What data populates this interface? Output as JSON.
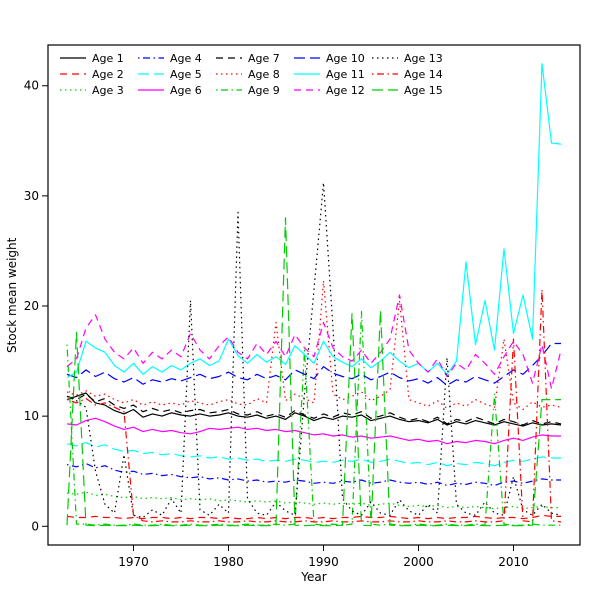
{
  "chart_data": {
    "type": "line",
    "title": "",
    "xlabel": "Year",
    "ylabel": "Stock mean weight",
    "x_ticks": [
      1970,
      1980,
      1990,
      2000,
      2010
    ],
    "y_ticks": [
      0,
      10,
      20,
      30,
      40
    ],
    "xlim": [
      1961,
      2017
    ],
    "ylim": [
      -1.7,
      43.7
    ],
    "grid": false,
    "legend_position": "top-left",
    "legend_columns": 5,
    "years": [
      1963,
      1964,
      1965,
      1966,
      1967,
      1968,
      1969,
      1970,
      1971,
      1972,
      1973,
      1974,
      1975,
      1976,
      1977,
      1978,
      1979,
      1980,
      1981,
      1982,
      1983,
      1984,
      1985,
      1986,
      1987,
      1988,
      1989,
      1990,
      1991,
      1992,
      1993,
      1994,
      1995,
      1996,
      1997,
      1998,
      1999,
      2000,
      2001,
      2002,
      2003,
      2004,
      2005,
      2006,
      2007,
      2008,
      2009,
      2010,
      2011,
      2012,
      2013,
      2014,
      2015
    ],
    "series": [
      {
        "name": "Age 1",
        "color": "#000000",
        "linetype": "solid",
        "values": [
          11.5,
          11.8,
          12.1,
          11.2,
          11.0,
          10.5,
          10.2,
          10.6,
          9.9,
          10.2,
          10.0,
          10.3,
          10.1,
          10.0,
          10.2,
          10.0,
          10.1,
          10.3,
          10.0,
          9.9,
          10.1,
          9.8,
          10.0,
          9.7,
          10.3,
          10.0,
          9.6,
          9.9,
          9.7,
          10.0,
          9.9,
          10.1,
          9.6,
          9.8,
          10.0,
          9.7,
          9.5,
          9.6,
          9.4,
          9.7,
          9.2,
          9.5,
          9.3,
          9.6,
          9.4,
          9.2,
          9.5,
          9.3,
          9.1,
          9.4,
          9.2,
          9.3,
          9.2
        ]
      },
      {
        "name": "Age 2",
        "color": "#FF0000",
        "linetype": "dashed",
        "values": [
          0.9,
          0.8,
          0.8,
          0.9,
          0.8,
          0.8,
          0.7,
          0.8,
          0.7,
          0.8,
          0.8,
          0.7,
          0.8,
          0.7,
          0.8,
          0.8,
          0.7,
          0.8,
          0.7,
          0.7,
          0.8,
          0.7,
          0.8,
          0.7,
          0.8,
          0.8,
          0.7,
          0.8,
          0.7,
          0.8,
          0.8,
          0.9,
          0.8,
          0.8,
          0.9,
          0.8,
          0.7,
          0.8,
          0.7,
          0.8,
          0.7,
          0.8,
          0.8,
          0.9,
          0.8,
          0.7,
          0.8,
          0.8,
          0.7,
          0.8,
          1.0,
          0.9,
          0.9
        ]
      },
      {
        "name": "Age 3",
        "color": "#00CD00",
        "linetype": "dotted",
        "values": [
          3.0,
          2.9,
          3.1,
          2.8,
          2.9,
          2.7,
          2.6,
          2.7,
          2.5,
          2.6,
          2.5,
          2.6,
          2.4,
          2.5,
          2.4,
          2.5,
          2.3,
          2.4,
          2.3,
          2.2,
          2.3,
          2.2,
          2.3,
          2.1,
          2.2,
          2.1,
          2.0,
          2.1,
          2.0,
          2.1,
          2.0,
          2.1,
          1.9,
          2.0,
          2.1,
          1.9,
          1.8,
          1.9,
          1.8,
          1.9,
          1.7,
          1.8,
          1.7,
          1.8,
          1.7,
          1.6,
          1.7,
          1.8,
          1.6,
          1.7,
          1.8,
          1.7,
          1.7
        ]
      },
      {
        "name": "Age 4",
        "color": "#0000FF",
        "linetype": "dotdash",
        "values": [
          5.6,
          5.4,
          5.7,
          5.3,
          5.5,
          5.1,
          4.9,
          5.0,
          4.7,
          4.8,
          4.6,
          4.7,
          4.5,
          4.4,
          4.5,
          4.3,
          4.4,
          4.2,
          4.3,
          4.1,
          4.2,
          4.0,
          4.1,
          4.0,
          4.2,
          4.1,
          3.9,
          4.0,
          3.9,
          4.1,
          4.0,
          4.2,
          3.9,
          4.0,
          4.2,
          4.0,
          3.9,
          4.0,
          3.8,
          4.0,
          3.7,
          3.9,
          3.8,
          4.0,
          3.9,
          3.7,
          4.0,
          4.1,
          3.9,
          4.1,
          4.3,
          4.2,
          4.2
        ]
      },
      {
        "name": "Age 5",
        "color": "#00FFFF",
        "linetype": "longdash",
        "values": [
          7.5,
          7.3,
          7.6,
          7.2,
          7.4,
          7.0,
          6.8,
          6.9,
          6.6,
          6.7,
          6.5,
          6.6,
          6.4,
          6.3,
          6.4,
          6.2,
          6.3,
          6.1,
          6.2,
          6.0,
          6.1,
          5.9,
          6.0,
          5.9,
          6.1,
          6.0,
          5.8,
          5.9,
          5.8,
          6.0,
          5.9,
          6.1,
          5.8,
          5.9,
          6.1,
          5.9,
          5.7,
          5.8,
          5.6,
          5.8,
          5.5,
          5.7,
          5.6,
          5.8,
          5.7,
          5.5,
          5.8,
          6.0,
          5.9,
          6.1,
          6.3,
          6.2,
          6.2
        ]
      },
      {
        "name": "Age 6",
        "color": "#FF00FF",
        "linetype": "solid",
        "values": [
          9.3,
          9.2,
          9.6,
          9.8,
          9.5,
          9.1,
          8.8,
          9.0,
          8.6,
          8.8,
          8.6,
          8.7,
          8.5,
          8.4,
          8.6,
          8.9,
          8.8,
          8.9,
          9.0,
          8.8,
          8.9,
          8.7,
          8.8,
          8.6,
          8.7,
          8.5,
          8.3,
          8.4,
          8.2,
          8.3,
          8.1,
          8.2,
          8.0,
          8.1,
          8.2,
          8.0,
          7.8,
          7.9,
          7.7,
          7.8,
          7.5,
          7.7,
          7.6,
          7.8,
          7.7,
          7.5,
          7.8,
          8.0,
          7.8,
          8.1,
          8.3,
          8.2,
          8.2
        ]
      },
      {
        "name": "Age 7",
        "color": "#000000",
        "linetype": "dashed",
        "values": [
          11.8,
          11.5,
          12.0,
          11.3,
          11.6,
          11.0,
          10.7,
          11.0,
          10.4,
          10.7,
          10.4,
          10.6,
          10.3,
          10.5,
          10.6,
          10.3,
          10.4,
          10.6,
          10.2,
          10.1,
          10.4,
          10.0,
          10.2,
          9.9,
          10.5,
          10.1,
          9.8,
          10.2,
          9.9,
          10.3,
          10.1,
          10.4,
          9.8,
          10.0,
          10.3,
          9.9,
          9.6,
          9.8,
          9.5,
          9.9,
          9.3,
          9.7,
          9.5,
          9.9,
          9.6,
          9.3,
          9.7,
          9.5,
          9.2,
          9.6,
          9.3,
          9.5,
          9.3
        ]
      },
      {
        "name": "Age 8",
        "color": "#FF0000",
        "linetype": "dotted",
        "values": [
          12.2,
          11.9,
          12.3,
          11.8,
          12.0,
          11.5,
          11.2,
          11.5,
          11.0,
          11.3,
          11.0,
          11.2,
          11.0,
          11.4,
          11.2,
          11.0,
          11.3,
          11.5,
          11.1,
          11.0,
          11.6,
          11.2,
          18.5,
          11.4,
          12.0,
          11.6,
          11.2,
          22.3,
          12.0,
          11.5,
          11.8,
          12.2,
          11.4,
          11.8,
          12.4,
          20.5,
          11.5,
          11.2,
          10.9,
          11.4,
          10.7,
          11.2,
          10.9,
          11.5,
          11.1,
          10.8,
          17.0,
          11.2,
          10.6,
          11.3,
          10.8,
          11.0,
          10.8
        ]
      },
      {
        "name": "Age 9",
        "color": "#00CD00",
        "linetype": "dotdash",
        "values": [
          16.5,
          0.2,
          0.2,
          0.1,
          0.2,
          0.1,
          0.1,
          0.2,
          0.1,
          0.1,
          0.2,
          0.1,
          0.1,
          0.2,
          0.1,
          0.1,
          0.2,
          0.1,
          0.1,
          0.2,
          0.1,
          0.1,
          0.2,
          0.1,
          0.2,
          16.0,
          0.2,
          0.1,
          0.2,
          0.1,
          0.2,
          19.5,
          0.2,
          0.1,
          0.2,
          0.1,
          0.1,
          0.2,
          0.1,
          0.1,
          0.2,
          0.1,
          0.1,
          0.2,
          0.1,
          12.0,
          0.2,
          0.1,
          0.1,
          0.2,
          0.1,
          0.1,
          0.1
        ]
      },
      {
        "name": "Age 10",
        "color": "#0000FF",
        "linetype": "longdash",
        "values": [
          13.8,
          13.5,
          14.2,
          13.6,
          14.0,
          13.4,
          13.1,
          13.5,
          12.9,
          13.3,
          13.1,
          13.4,
          13.2,
          13.5,
          13.8,
          13.4,
          13.6,
          14.0,
          13.5,
          13.3,
          13.8,
          13.4,
          13.7,
          13.3,
          14.2,
          13.8,
          13.4,
          14.5,
          13.9,
          13.6,
          13.4,
          13.8,
          13.3,
          13.6,
          14.0,
          13.5,
          13.2,
          13.4,
          13.0,
          13.5,
          12.8,
          13.3,
          13.1,
          13.6,
          13.3,
          13.0,
          13.6,
          14.2,
          13.8,
          14.6,
          15.5,
          16.6,
          16.6
        ]
      },
      {
        "name": "Age 11",
        "color": "#00FFFF",
        "linetype": "solid",
        "values": [
          13.5,
          14.0,
          16.8,
          16.2,
          15.8,
          14.6,
          14.0,
          14.8,
          13.8,
          14.5,
          14.0,
          14.6,
          14.2,
          14.8,
          15.2,
          14.6,
          15.0,
          17.0,
          15.5,
          14.8,
          15.6,
          14.9,
          15.4,
          14.7,
          16.4,
          15.6,
          14.8,
          16.8,
          15.4,
          14.9,
          14.5,
          15.2,
          14.4,
          15.0,
          15.8,
          15.0,
          14.4,
          14.8,
          14.0,
          14.8,
          13.8,
          15.0,
          24.0,
          16.5,
          20.5,
          16.0,
          25.2,
          17.5,
          21.0,
          17.0,
          42.0,
          34.8,
          34.7
        ]
      },
      {
        "name": "Age 12",
        "color": "#FF00FF",
        "linetype": "dashed",
        "values": [
          14.5,
          15.2,
          18.0,
          19.2,
          17.0,
          15.8,
          15.2,
          16.2,
          14.8,
          15.8,
          15.2,
          16.0,
          15.4,
          17.5,
          16.0,
          15.2,
          16.4,
          17.2,
          15.8,
          15.2,
          16.6,
          15.6,
          16.8,
          15.4,
          17.4,
          16.2,
          15.4,
          18.5,
          16.2,
          15.4,
          15.0,
          16.0,
          14.8,
          15.8,
          17.0,
          21.0,
          16.0,
          14.8,
          14.0,
          15.2,
          13.6,
          14.8,
          14.2,
          15.6,
          14.8,
          13.8,
          15.4,
          16.8,
          15.6,
          13.0,
          16.5,
          12.5,
          16.0
        ]
      },
      {
        "name": "Age 13",
        "color": "#000000",
        "linetype": "dotted",
        "values": [
          11.8,
          11.4,
          10.8,
          5.0,
          2.0,
          1.2,
          6.5,
          1.0,
          0.8,
          1.5,
          1.0,
          2.5,
          1.2,
          20.5,
          1.5,
          1.0,
          2.0,
          1.2,
          28.5,
          2.5,
          1.2,
          1.0,
          2.2,
          1.4,
          1.0,
          12.0,
          21.5,
          31.2,
          18.0,
          2.5,
          1.4,
          1.0,
          2.2,
          1.2,
          1.0,
          2.4,
          1.4,
          1.0,
          2.0,
          1.2,
          15.3,
          2.0,
          1.2,
          1.0,
          2.2,
          1.2,
          1.0,
          4.5,
          1.5,
          1.0,
          2.0,
          1.2,
          1.0
        ]
      },
      {
        "name": "Age 14",
        "color": "#FF0000",
        "linetype": "dotdash",
        "values": [
          11.5,
          11.2,
          11.6,
          11.0,
          11.2,
          10.8,
          10.4,
          1.0,
          0.5,
          0.4,
          0.5,
          0.4,
          0.4,
          0.5,
          0.4,
          0.4,
          0.5,
          0.4,
          0.4,
          0.5,
          0.4,
          0.4,
          0.5,
          0.4,
          0.4,
          0.5,
          0.4,
          0.4,
          0.5,
          0.4,
          0.4,
          0.5,
          0.4,
          0.4,
          0.5,
          0.4,
          0.4,
          0.5,
          0.4,
          0.4,
          0.5,
          0.4,
          0.4,
          0.5,
          0.4,
          0.4,
          0.5,
          17.0,
          0.5,
          0.4,
          21.5,
          0.5,
          0.4
        ]
      },
      {
        "name": "Age 15",
        "color": "#00CD00",
        "linetype": "longdash",
        "values": [
          0.1,
          17.6,
          0.1,
          0.05,
          0.1,
          0.05,
          0.05,
          0.1,
          0.05,
          0.05,
          0.1,
          0.05,
          0.05,
          0.1,
          0.05,
          0.05,
          0.1,
          0.05,
          0.05,
          0.1,
          0.05,
          0.05,
          0.1,
          28.0,
          0.1,
          0.05,
          0.1,
          0.05,
          0.05,
          0.1,
          19.3,
          0.1,
          0.05,
          19.6,
          0.1,
          0.05,
          0.05,
          0.1,
          0.05,
          0.05,
          0.1,
          0.05,
          0.05,
          0.1,
          0.05,
          0.05,
          0.1,
          0.05,
          0.05,
          0.1,
          11.5,
          11.5,
          11.5
        ]
      }
    ]
  }
}
